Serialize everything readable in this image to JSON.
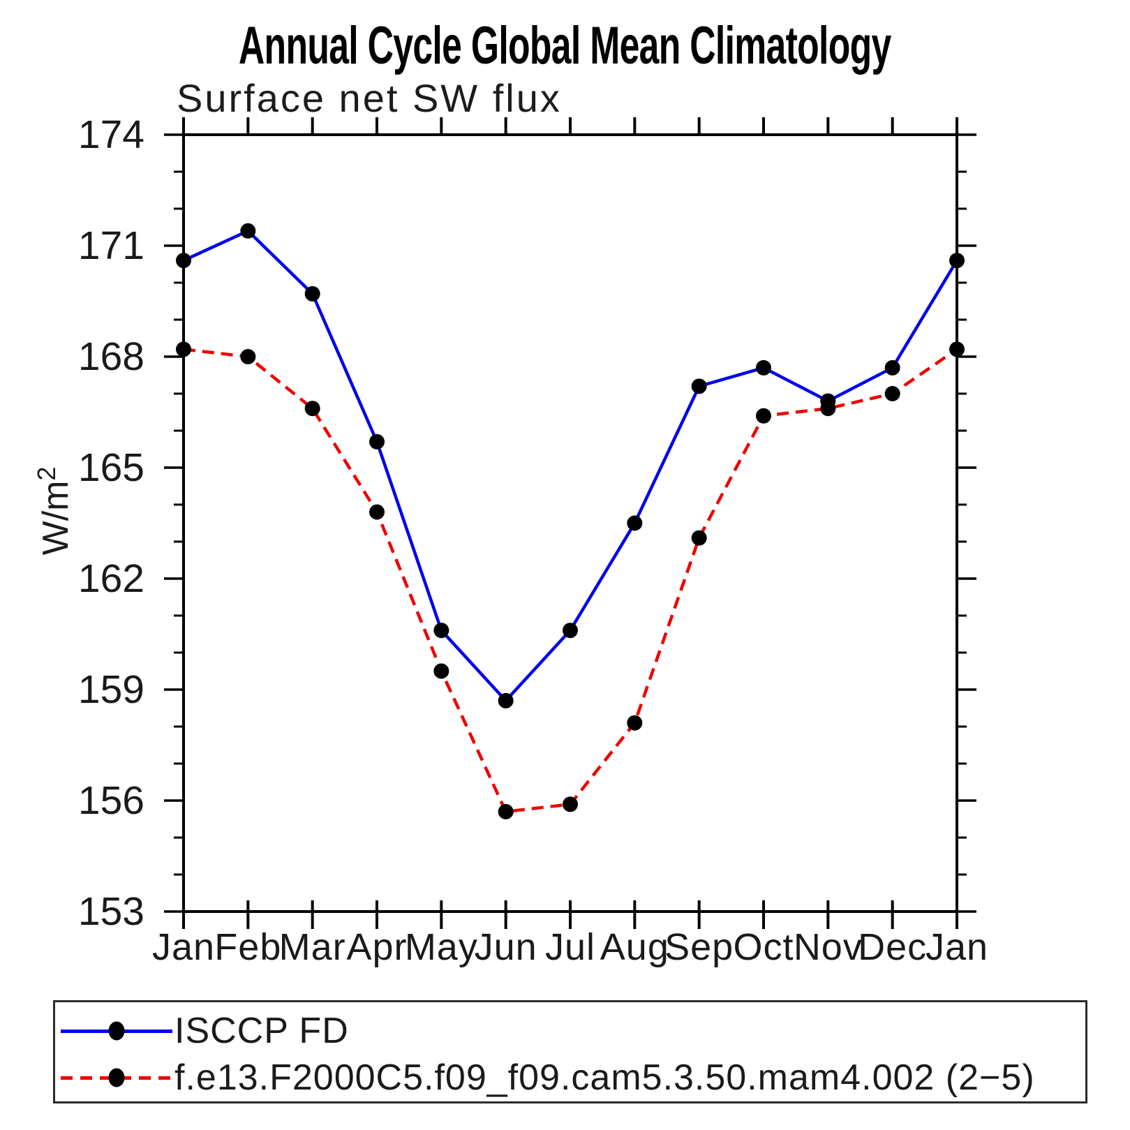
{
  "chart_data": {
    "type": "line",
    "title": "Annual Cycle Global Mean Climatology",
    "subtitle": "Surface net SW flux",
    "ylabel_base": "W/m",
    "ylabel_exp": "2",
    "x_categories": [
      "Jan",
      "Feb",
      "Mar",
      "Apr",
      "May",
      "Jun",
      "Jul",
      "Aug",
      "Sep",
      "Oct",
      "Nov",
      "Dec",
      "Jan"
    ],
    "ylim": [
      153,
      174
    ],
    "y_major_ticks": [
      153,
      156,
      159,
      162,
      165,
      168,
      171,
      174
    ],
    "y_minor_step": 1,
    "grid": "off",
    "legend_position": "bottom",
    "axis_color": "#000000",
    "marker_color": "#000000",
    "series": [
      {
        "name": "ISCCP FD",
        "color": "#0000ee",
        "style": "solid",
        "values": [
          170.6,
          171.4,
          169.7,
          165.7,
          160.6,
          158.7,
          160.6,
          163.5,
          167.2,
          167.7,
          166.8,
          167.7,
          170.6
        ]
      },
      {
        "name": "f.e13.F2000C5.f09_f09.cam5.3.50.mam4.002 (2−5)",
        "color": "#ee0000",
        "style": "dashed",
        "values": [
          168.2,
          168.0,
          166.6,
          163.8,
          159.5,
          155.7,
          155.9,
          158.1,
          163.1,
          166.4,
          166.6,
          167.0,
          168.2
        ]
      }
    ]
  }
}
